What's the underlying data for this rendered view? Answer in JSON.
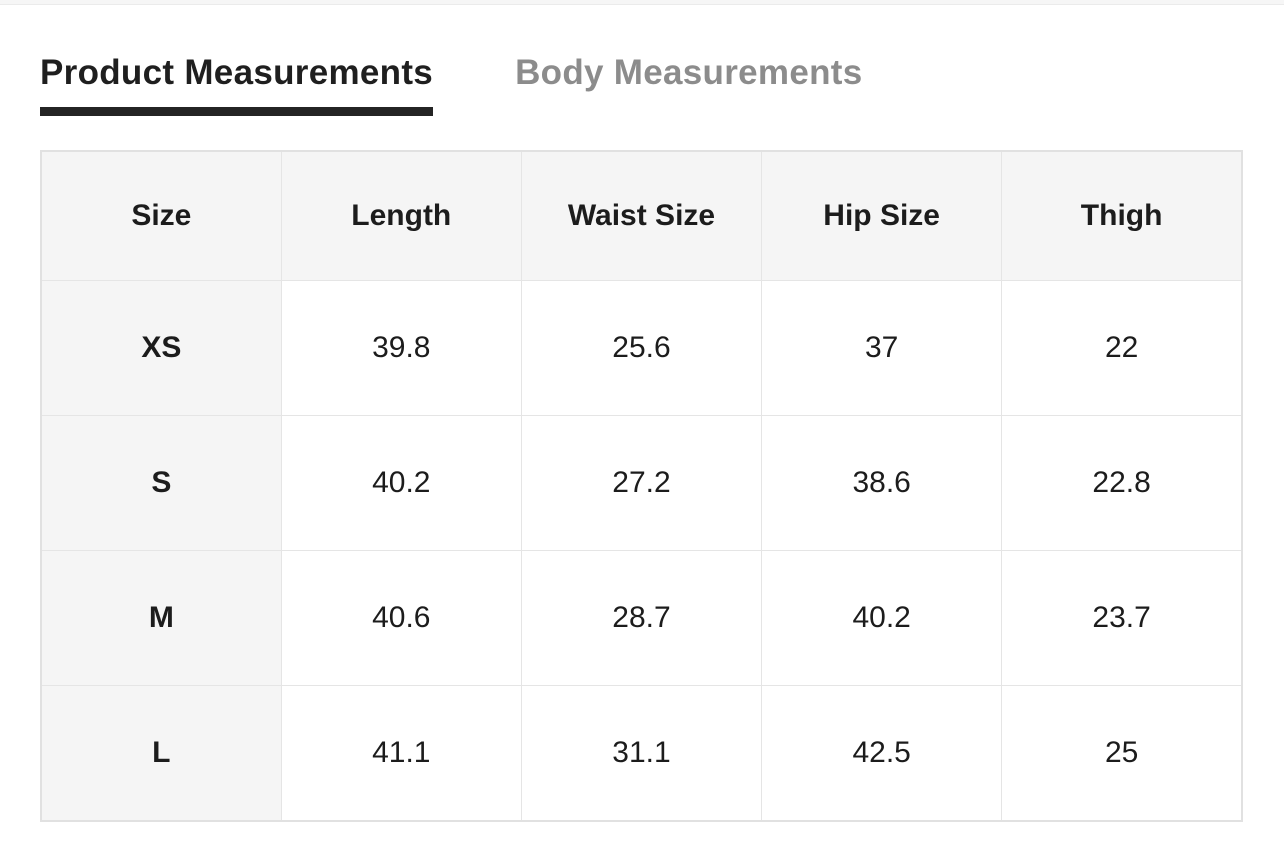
{
  "tabs": [
    {
      "label": "Product Measurements",
      "active": true
    },
    {
      "label": "Body Measurements",
      "active": false
    }
  ],
  "table": {
    "columns": [
      "Size",
      "Length",
      "Waist Size",
      "Hip Size",
      "Thigh"
    ],
    "rows": [
      {
        "size": "XS",
        "values": [
          "39.8",
          "25.6",
          "37",
          "22"
        ]
      },
      {
        "size": "S",
        "values": [
          "40.2",
          "27.2",
          "38.6",
          "22.8"
        ]
      },
      {
        "size": "M",
        "values": [
          "40.6",
          "28.7",
          "40.2",
          "23.7"
        ]
      },
      {
        "size": "L",
        "values": [
          "41.1",
          "31.1",
          "42.5",
          "25"
        ]
      }
    ]
  },
  "colors": {
    "active_tab_text": "#1f1f1f",
    "active_tab_underline": "#242424",
    "inactive_tab_text": "#8c8c8c",
    "header_row_bg": "#f5f5f5",
    "size_column_bg": "#f5f5f5",
    "table_border": "#e5e5e5",
    "cell_text": "#1c1c1c"
  }
}
